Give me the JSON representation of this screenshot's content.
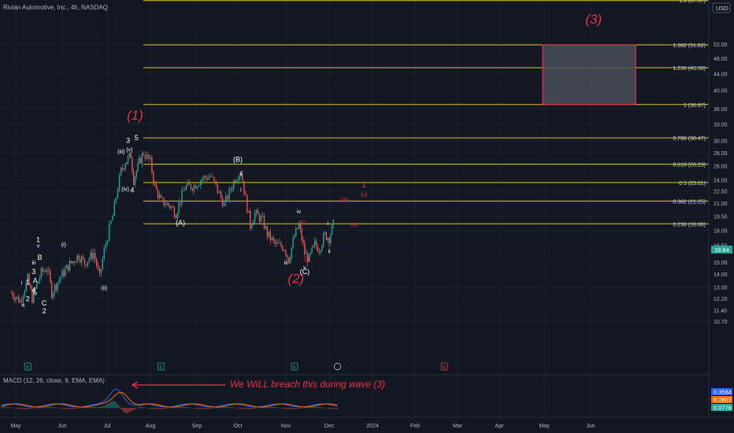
{
  "header": {
    "symbol_title": "Rivian Automotive, Inc., 4h, NASDAQ",
    "currency": "USD",
    "last_price_tag": "18.64"
  },
  "colors": {
    "background": "#131722",
    "fib_line": "#d9c72f",
    "wave_label_primary": "#e8334a",
    "wave_label_secondary": "#ffffff",
    "candle_up": "#26a69a",
    "candle_down": "#ef5350",
    "target_box_border": "#e8334a",
    "target_box_fill": "#4a4d57",
    "price_tag_bg": "#26a69a",
    "macd_line": "#2962ff",
    "signal_line": "#ff6d00",
    "annotation_arrow": "#e8334a"
  },
  "chart_data": {
    "type": "candlestick",
    "y_scale": "log",
    "ylim": [
      10.7,
      64
    ],
    "y_ticks": [
      "10.70",
      "11.40",
      "12.20",
      "13.00",
      "14.00",
      "15.00",
      "16.50",
      "18.00",
      "19.50",
      "21.00",
      "22.50",
      "24.00",
      "26.00",
      "28.00",
      "30.00",
      "33.00",
      "36.00",
      "40.00",
      "44.00",
      "48.00",
      "52.00"
    ],
    "x_ticks": [
      "May",
      "Jun",
      "Jul",
      "Aug",
      "Sep",
      "Oct",
      "Nov",
      "Dec",
      "2024",
      "Feb",
      "Mar",
      "Apr",
      "May",
      "Jun"
    ],
    "price_path": [
      {
        "date": "2023-04-28",
        "close": 12.6
      },
      {
        "date": "2023-05-04",
        "close": 12.0
      },
      {
        "date": "2023-05-09",
        "close": 13.6
      },
      {
        "date": "2023-05-12",
        "close": 12.2
      },
      {
        "date": "2023-05-18",
        "close": 14.1
      },
      {
        "date": "2023-05-22",
        "close": 14.5
      },
      {
        "date": "2023-05-25",
        "close": 12.6
      },
      {
        "date": "2023-05-31",
        "close": 13.8
      },
      {
        "date": "2023-06-06",
        "close": 14.8
      },
      {
        "date": "2023-06-12",
        "close": 15.6
      },
      {
        "date": "2023-06-16",
        "close": 14.9
      },
      {
        "date": "2023-06-22",
        "close": 15.8
      },
      {
        "date": "2023-06-26",
        "close": 13.7
      },
      {
        "date": "2023-06-29",
        "close": 16.0
      },
      {
        "date": "2023-07-05",
        "close": 19.5
      },
      {
        "date": "2023-07-11",
        "close": 25.2
      },
      {
        "date": "2023-07-14",
        "close": 26.6
      },
      {
        "date": "2023-07-18",
        "close": 27.5
      },
      {
        "date": "2023-07-20",
        "close": 24.0
      },
      {
        "date": "2023-07-24",
        "close": 26.5
      },
      {
        "date": "2023-07-27",
        "close": 28.0
      },
      {
        "date": "2023-08-01",
        "close": 26.5
      },
      {
        "date": "2023-08-04",
        "close": 23.0
      },
      {
        "date": "2023-08-08",
        "close": 21.2
      },
      {
        "date": "2023-08-14",
        "close": 20.7
      },
      {
        "date": "2023-08-18",
        "close": 19.8
      },
      {
        "date": "2023-08-24",
        "close": 23.0
      },
      {
        "date": "2023-08-30",
        "close": 23.2
      },
      {
        "date": "2023-09-05",
        "close": 24.2
      },
      {
        "date": "2023-09-11",
        "close": 24.5
      },
      {
        "date": "2023-09-15",
        "close": 23.0
      },
      {
        "date": "2023-09-21",
        "close": 20.8
      },
      {
        "date": "2023-09-26",
        "close": 22.8
      },
      {
        "date": "2023-09-29",
        "close": 24.2
      },
      {
        "date": "2023-10-03",
        "close": 25.2
      },
      {
        "date": "2023-10-06",
        "close": 21.5
      },
      {
        "date": "2023-10-09",
        "close": 18.5
      },
      {
        "date": "2023-10-12",
        "close": 19.8
      },
      {
        "date": "2023-10-17",
        "close": 19.0
      },
      {
        "date": "2023-10-20",
        "close": 17.6
      },
      {
        "date": "2023-10-25",
        "close": 16.6
      },
      {
        "date": "2023-10-31",
        "close": 16.3
      },
      {
        "date": "2023-11-03",
        "close": 15.2
      },
      {
        "date": "2023-11-07",
        "close": 17.4
      },
      {
        "date": "2023-11-10",
        "close": 18.5
      },
      {
        "date": "2023-11-14",
        "close": 15.8
      },
      {
        "date": "2023-11-17",
        "close": 15.2
      },
      {
        "date": "2023-11-21",
        "close": 16.6
      },
      {
        "date": "2023-11-24",
        "close": 16.2
      },
      {
        "date": "2023-11-28",
        "close": 17.5
      },
      {
        "date": "2023-12-01",
        "close": 17.2
      },
      {
        "date": "2023-12-04",
        "close": 18.6
      }
    ],
    "fib_levels": [
      {
        "label": "1.382 (51.82)",
        "price": 51.82
      },
      {
        "label": "1.236 (45.50)",
        "price": 45.5
      },
      {
        "label": "1 (36.87)",
        "price": 36.87
      },
      {
        "label": "0.786 (30.47)",
        "price": 30.47
      },
      {
        "label": "0.618 (26.23)",
        "price": 26.23
      },
      {
        "label": "0.5 (23.61)",
        "price": 23.61
      },
      {
        "label": "0.382 (21.25)",
        "price": 21.25
      },
      {
        "label": "0.236 (18.66)",
        "price": 18.66
      }
    ],
    "top_cut_label": "1.5 (57.57)",
    "target_box": {
      "price_top": 51.82,
      "price_bottom": 36.87,
      "date_start": "2024-04-30",
      "date_end": "2024-07-01"
    },
    "wave_labels": [
      {
        "text": "(1)",
        "date": "2023-07-21",
        "price": 33.8,
        "style": "primary-big"
      },
      {
        "text": "(2)",
        "date": "2023-11-08",
        "price": 13.3,
        "style": "primary-big"
      },
      {
        "text": "(3)",
        "date": "2024-06-03",
        "price": 58.5,
        "style": "primary-big"
      },
      {
        "text": "1",
        "date": "2023-12-26",
        "price": 23.0,
        "style": "primary-small"
      },
      {
        "text": "(v)",
        "date": "2023-12-26",
        "price": 21.8,
        "style": "red-small"
      },
      {
        "text": "(iii)",
        "date": "2023-12-12",
        "price": 21.2,
        "style": "red-small"
      },
      {
        "text": "(iv)",
        "date": "2023-12-19",
        "price": 18.4,
        "style": "red-small"
      },
      {
        "text": "(i)",
        "date": "2023-11-13",
        "price": 18.6,
        "style": "red-small"
      },
      {
        "text": "(ii)",
        "date": "2023-11-16",
        "price": 15.1,
        "style": "red-small"
      },
      {
        "text": "3",
        "date": "2023-07-16",
        "price": 29.6,
        "style": "white"
      },
      {
        "text": "5",
        "date": "2023-07-22",
        "price": 30.1,
        "style": "white"
      },
      {
        "text": "(iii)",
        "date": "2023-07-11",
        "price": 27.9,
        "style": "white"
      },
      {
        "text": "(v)",
        "date": "2023-07-17",
        "price": 28.2,
        "style": "white"
      },
      {
        "text": "(iv)",
        "date": "2023-07-14",
        "price": 22.5,
        "style": "white"
      },
      {
        "text": "4",
        "date": "2023-07-19",
        "price": 22.3,
        "style": "white"
      },
      {
        "text": "(B)",
        "date": "2023-10-01",
        "price": 26.6,
        "style": "white"
      },
      {
        "text": "ii",
        "date": "2023-10-03",
        "price": 24.6,
        "style": "white"
      },
      {
        "text": "i",
        "date": "2023-10-03",
        "price": 22.4,
        "style": "white"
      },
      {
        "text": "(A)",
        "date": "2023-08-21",
        "price": 18.5,
        "style": "white"
      },
      {
        "text": "iv",
        "date": "2023-11-10",
        "price": 19.8,
        "style": "white"
      },
      {
        "text": "iii",
        "date": "2023-11-01",
        "price": 14.8,
        "style": "white"
      },
      {
        "text": "v",
        "date": "2023-11-14",
        "price": 14.4,
        "style": "white"
      },
      {
        "text": "(C)",
        "date": "2023-11-14",
        "price": 14.0,
        "style": "white"
      },
      {
        "text": "i",
        "date": "2023-11-30",
        "price": 18.5,
        "style": "white"
      },
      {
        "text": "ii",
        "date": "2023-12-01",
        "price": 15.8,
        "style": "white"
      },
      {
        "text": "(i)",
        "date": "2023-06-02",
        "price": 16.4,
        "style": "white"
      },
      {
        "text": "(ii)",
        "date": "2023-06-29",
        "price": 12.8,
        "style": "white"
      },
      {
        "text": "1",
        "date": "2023-05-16",
        "price": 16.8,
        "style": "white"
      },
      {
        "text": "v",
        "date": "2023-05-16",
        "price": 16.3,
        "style": "white"
      },
      {
        "text": "B",
        "date": "2023-05-17",
        "price": 15.2,
        "style": "white"
      },
      {
        "text": "iii",
        "date": "2023-05-13",
        "price": 14.8,
        "style": "white"
      },
      {
        "text": "3",
        "date": "2023-05-13",
        "price": 14.0,
        "style": "white"
      },
      {
        "text": "A",
        "date": "2023-05-14",
        "price": 13.3,
        "style": "white"
      },
      {
        "text": "i",
        "date": "2023-05-05",
        "price": 13.2,
        "style": "white"
      },
      {
        "text": "1",
        "date": "2023-05-09",
        "price": 13.2,
        "style": "white"
      },
      {
        "text": "4",
        "date": "2023-05-13",
        "price": 12.6,
        "style": "white"
      },
      {
        "text": "iv",
        "date": "2023-05-14",
        "price": 12.4,
        "style": "white"
      },
      {
        "text": "2",
        "date": "2023-05-09",
        "price": 12.0,
        "style": "white"
      },
      {
        "text": "ii",
        "date": "2023-05-06",
        "price": 11.6,
        "style": "white"
      },
      {
        "text": "C",
        "date": "2023-05-20",
        "price": 11.7,
        "style": "white"
      },
      {
        "text": "2",
        "date": "2023-05-20",
        "price": 11.2,
        "style": "white"
      }
    ],
    "macd": {
      "title": "MACD (12, 26, close, 9, EMA, EMA)",
      "values": [
        "0.3584",
        "0.2807",
        "0.0776"
      ],
      "annotation": "We WILL breach this during wave (3)"
    }
  }
}
